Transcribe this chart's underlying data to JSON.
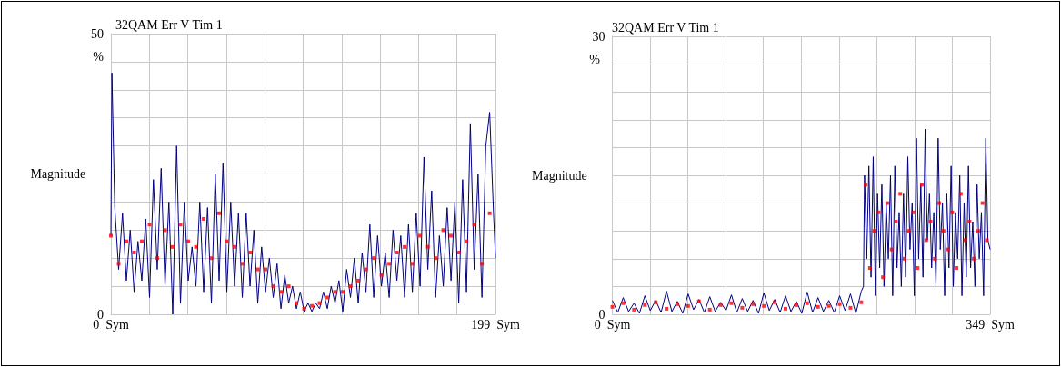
{
  "chart_data": [
    {
      "type": "line",
      "title": "32QAM Err V Tim 1",
      "ylabel": "Magnitude",
      "annotations": [
        "%"
      ],
      "xlim": [
        0,
        199
      ],
      "xticks": [
        {
          "value": 0,
          "label": "0  Sym"
        },
        {
          "value": 19.9,
          "label": null
        },
        {
          "value": 39.8,
          "label": null
        },
        {
          "value": 59.7,
          "label": null
        },
        {
          "value": 79.6,
          "label": null
        },
        {
          "value": 99.5,
          "label": null
        },
        {
          "value": 119.4,
          "label": null
        },
        {
          "value": 139.3,
          "label": null
        },
        {
          "value": 159.2,
          "label": null
        },
        {
          "value": 179.1,
          "label": null
        },
        {
          "value": 199,
          "label": "199  Sym"
        }
      ],
      "ylim": [
        0,
        50
      ],
      "yticks": [
        0,
        {
          "value": 5,
          "label": null
        },
        {
          "value": 10,
          "label": null
        },
        {
          "value": 15,
          "label": null
        },
        {
          "value": 20,
          "label": null
        },
        {
          "value": 25,
          "label": null
        },
        {
          "value": 30,
          "label": null
        },
        {
          "value": 35,
          "label": null
        },
        {
          "value": 40,
          "label": null
        },
        {
          "value": 45,
          "label": null
        },
        50
      ],
      "grid": true,
      "series": [
        {
          "color": "#000080",
          "marker": "none",
          "x": [
            0,
            0.5,
            2,
            4,
            6,
            8,
            10,
            12,
            14,
            16,
            18,
            20,
            22,
            24,
            26,
            28,
            30,
            32,
            34,
            36,
            38,
            40,
            42,
            44,
            46,
            48,
            50,
            52,
            54,
            56,
            58,
            60,
            62,
            64,
            66,
            68,
            70,
            72,
            74,
            76,
            78,
            80,
            82,
            84,
            86,
            88,
            90,
            92,
            94,
            96,
            98,
            100,
            102,
            104,
            106,
            108,
            110,
            112,
            114,
            116,
            118,
            120,
            122,
            124,
            126,
            128,
            130,
            132,
            134,
            136,
            138,
            140,
            142,
            144,
            146,
            148,
            150,
            152,
            154,
            156,
            158,
            160,
            162,
            164,
            166,
            168,
            170,
            172,
            174,
            176,
            178,
            180,
            182,
            184,
            186,
            188,
            190,
            192,
            194,
            196,
            198,
            199
          ],
          "values": [
            14,
            43,
            19,
            8,
            18,
            6,
            15,
            4,
            13,
            6,
            17,
            3,
            24,
            8,
            26,
            5,
            20,
            0,
            30,
            2,
            20,
            6,
            12,
            5,
            20,
            4,
            19,
            2,
            25,
            6,
            27,
            4,
            20,
            5,
            18,
            3,
            18,
            5,
            15,
            2,
            12,
            4,
            10,
            3,
            9,
            1,
            7,
            2,
            5,
            1,
            4,
            0.5,
            2,
            0.5,
            2,
            1,
            4,
            1,
            5,
            2,
            6,
            0.5,
            8,
            3,
            10,
            2,
            11,
            4,
            16,
            3,
            14,
            5,
            11,
            3,
            15,
            6,
            14,
            3,
            16,
            4,
            18,
            5,
            28,
            8,
            22,
            3,
            14,
            5,
            19,
            6,
            20,
            2,
            24,
            4,
            34,
            8,
            25,
            3,
            30,
            36,
            18,
            10
          ]
        },
        {
          "type": "scatter",
          "color": "#ff0000",
          "marker": "square",
          "x": [
            0,
            4,
            8,
            12,
            16,
            20,
            24,
            28,
            32,
            36,
            40,
            44,
            48,
            52,
            56,
            60,
            64,
            68,
            72,
            76,
            80,
            84,
            88,
            92,
            96,
            100,
            104,
            108,
            112,
            116,
            120,
            124,
            128,
            132,
            136,
            140,
            144,
            148,
            152,
            156,
            160,
            164,
            168,
            172,
            176,
            180,
            184,
            188,
            192,
            196
          ],
          "values": [
            14,
            9,
            13,
            11,
            13,
            16,
            10,
            15,
            12,
            16,
            13,
            12,
            17,
            10,
            18,
            13,
            12,
            9,
            11,
            8,
            8,
            5,
            4,
            5,
            2,
            1,
            1.5,
            2,
            3,
            4,
            4,
            5,
            6,
            8,
            10,
            7,
            9,
            11,
            12,
            9,
            14,
            12,
            10,
            15,
            14,
            11,
            13,
            16,
            9,
            18
          ]
        }
      ]
    },
    {
      "type": "line",
      "title": "32QAM Err V Tim 1",
      "ylabel": "Magnitude",
      "annotations": [
        "%"
      ],
      "xlim": [
        0,
        349
      ],
      "xticks": [
        {
          "value": 0,
          "label": "0  Sym"
        },
        {
          "value": 34.9,
          "label": null
        },
        {
          "value": 69.8,
          "label": null
        },
        {
          "value": 104.7,
          "label": null
        },
        {
          "value": 139.6,
          "label": null
        },
        {
          "value": 174.5,
          "label": null
        },
        {
          "value": 209.4,
          "label": null
        },
        {
          "value": 244.3,
          "label": null
        },
        {
          "value": 279.2,
          "label": null
        },
        {
          "value": 314.1,
          "label": null
        },
        {
          "value": 349,
          "label": "349  Sym"
        }
      ],
      "ylim": [
        0,
        30
      ],
      "yticks": [
        0,
        {
          "value": 3,
          "label": null
        },
        {
          "value": 6,
          "label": null
        },
        {
          "value": 9,
          "label": null
        },
        {
          "value": 12,
          "label": null
        },
        {
          "value": 15,
          "label": null
        },
        {
          "value": 18,
          "label": null
        },
        {
          "value": 21,
          "label": null
        },
        {
          "value": 24,
          "label": null
        },
        {
          "value": 27,
          "label": null
        },
        30
      ],
      "grid": true,
      "series": [
        {
          "color": "#000080",
          "marker": "none",
          "x": [
            0,
            5,
            10,
            15,
            20,
            25,
            30,
            35,
            40,
            45,
            50,
            55,
            60,
            65,
            70,
            75,
            80,
            85,
            90,
            95,
            100,
            105,
            110,
            115,
            120,
            125,
            130,
            135,
            140,
            145,
            150,
            155,
            160,
            165,
            170,
            175,
            180,
            185,
            190,
            195,
            200,
            205,
            210,
            215,
            220,
            225,
            230,
            232,
            233,
            235,
            237,
            239,
            241,
            243,
            245,
            247,
            249,
            251,
            253,
            255,
            257,
            259,
            261,
            263,
            265,
            267,
            269,
            271,
            273,
            275,
            277,
            279,
            281,
            283,
            285,
            287,
            289,
            291,
            293,
            295,
            297,
            299,
            301,
            303,
            305,
            307,
            309,
            311,
            313,
            315,
            317,
            319,
            321,
            323,
            325,
            327,
            329,
            331,
            333,
            335,
            337,
            339,
            341,
            343,
            345,
            347,
            349
          ],
          "values": [
            1.5,
            0.2,
            1.8,
            0.3,
            1.2,
            0.1,
            2,
            0.4,
            1.5,
            0.2,
            2.5,
            0.3,
            1.4,
            0.1,
            2.2,
            0.5,
            1.6,
            0.2,
            1.9,
            0.3,
            1.3,
            0.4,
            2.1,
            0.2,
            1.7,
            0.3,
            1.5,
            0.1,
            2.3,
            0.4,
            1.6,
            0.2,
            2,
            0.3,
            1.4,
            0.1,
            2.4,
            0.2,
            1.8,
            0.3,
            1.5,
            0.2,
            2,
            0.4,
            2.2,
            0.1,
            2.5,
            3,
            15,
            6,
            16,
            4,
            17,
            2,
            13,
            5,
            14,
            3,
            12,
            6,
            15,
            2,
            16,
            5,
            11,
            3,
            13,
            4,
            17,
            7,
            12,
            2,
            19,
            6,
            14,
            4,
            20,
            8,
            13,
            5,
            11,
            3,
            19,
            7,
            12,
            2,
            13,
            5,
            16,
            3,
            11,
            6,
            15,
            2,
            12,
            4,
            16,
            5,
            10,
            3,
            14,
            6,
            11,
            2,
            19,
            8,
            7
          ]
        },
        {
          "type": "scatter",
          "color": "#ff0000",
          "marker": "square",
          "x": [
            0,
            10,
            20,
            30,
            40,
            50,
            60,
            70,
            80,
            90,
            100,
            110,
            120,
            130,
            140,
            150,
            160,
            170,
            180,
            190,
            200,
            210,
            220,
            230,
            234,
            238,
            242,
            246,
            250,
            254,
            258,
            262,
            266,
            270,
            274,
            278,
            282,
            286,
            290,
            294,
            298,
            302,
            306,
            310,
            314,
            318,
            322,
            326,
            330,
            334,
            338,
            342,
            346
          ],
          "values": [
            0.8,
            1.2,
            0.5,
            1,
            1.3,
            0.6,
            1.1,
            0.9,
            1.4,
            0.5,
            1,
            1.2,
            0.7,
            1.1,
            0.9,
            1.3,
            0.6,
            1,
            1.2,
            0.8,
            0.9,
            1.1,
            0.7,
            1.3,
            14,
            5,
            9,
            11,
            4,
            12,
            7,
            10,
            13,
            6,
            9,
            11,
            5,
            14,
            8,
            10,
            6,
            12,
            9,
            7,
            11,
            5,
            13,
            8,
            10,
            6,
            9,
            12,
            8
          ]
        }
      ]
    }
  ]
}
